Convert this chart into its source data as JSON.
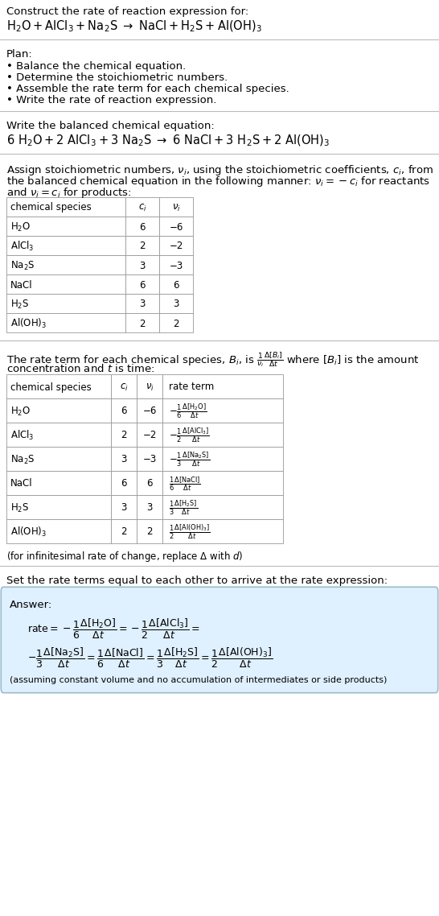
{
  "title_line1": "Construct the rate of reaction expression for:",
  "plan_header": "Plan:",
  "plan_items": [
    "• Balance the chemical equation.",
    "• Determine the stoichiometric numbers.",
    "• Assemble the rate term for each chemical species.",
    "• Write the rate of reaction expression."
  ],
  "balanced_header": "Write the balanced chemical equation:",
  "table1_headers": [
    "chemical species",
    "$c_i$",
    "$\\nu_i$"
  ],
  "table1_data": [
    [
      "H$_2$O",
      "6",
      "−6"
    ],
    [
      "AlCl$_3$",
      "2",
      "−2"
    ],
    [
      "Na$_2$S",
      "3",
      "−3"
    ],
    [
      "NaCl",
      "6",
      "6"
    ],
    [
      "H$_2$S",
      "3",
      "3"
    ],
    [
      "Al(OH)$_3$",
      "2",
      "2"
    ]
  ],
  "table2_headers": [
    "chemical species",
    "$c_i$",
    "$\\nu_i$",
    "rate term"
  ],
  "table2_data": [
    [
      "H$_2$O",
      "6",
      "−6",
      "$-\\frac{1}{6}\\frac{\\Delta[\\mathrm{H_2O}]}{\\Delta t}$"
    ],
    [
      "AlCl$_3$",
      "2",
      "−2",
      "$-\\frac{1}{2}\\frac{\\Delta[\\mathrm{AlCl_3}]}{\\Delta t}$"
    ],
    [
      "Na$_2$S",
      "3",
      "−3",
      "$-\\frac{1}{3}\\frac{\\Delta[\\mathrm{Na_2S}]}{\\Delta t}$"
    ],
    [
      "NaCl",
      "6",
      "6",
      "$\\frac{1}{6}\\frac{\\Delta[\\mathrm{NaCl}]}{\\Delta t}$"
    ],
    [
      "H$_2$S",
      "3",
      "3",
      "$\\frac{1}{3}\\frac{\\Delta[\\mathrm{H_2S}]}{\\Delta t}$"
    ],
    [
      "Al(OH)$_3$",
      "2",
      "2",
      "$\\frac{1}{2}\\frac{\\Delta[\\mathrm{Al(OH)_3}]}{\\Delta t}$"
    ]
  ],
  "set_equal_text": "Set the rate terms equal to each other to arrive at the rate expression:",
  "answer_box_color": "#dff0ff",
  "answer_border_color": "#9bbccc",
  "bg_color": "#ffffff",
  "line_color": "#bbbbbb",
  "fontsize": 9.5,
  "fontsize_small": 8.5
}
